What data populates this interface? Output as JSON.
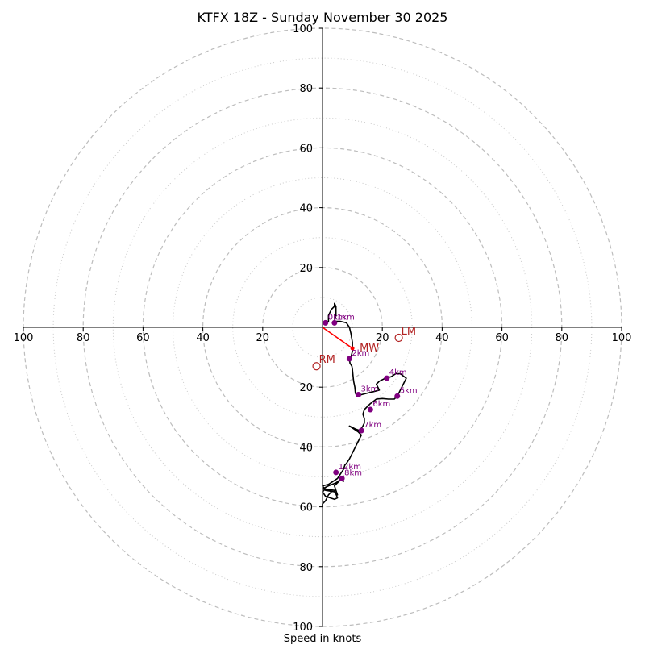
{
  "chart_data": {
    "type": "hodograph",
    "title": "KTFX 18Z - Sunday November 30 2025",
    "xlabel": "Speed in knots",
    "range": [
      -100,
      100
    ],
    "units": "knots",
    "rings_major": [
      20,
      40,
      60,
      80,
      100
    ],
    "rings_minor": [
      10,
      30,
      50,
      70,
      90
    ],
    "ticks": [
      {
        "value": -100,
        "label": "100"
      },
      {
        "value": -80,
        "label": "80"
      },
      {
        "value": -60,
        "label": "60"
      },
      {
        "value": -40,
        "label": "40"
      },
      {
        "value": -20,
        "label": "20"
      },
      {
        "value": 20,
        "label": "20"
      },
      {
        "value": 40,
        "label": "40"
      },
      {
        "value": 60,
        "label": "60"
      },
      {
        "value": 80,
        "label": "80"
      },
      {
        "value": 100,
        "label": "100"
      }
    ],
    "trace": [
      [
        1,
        1.5
      ],
      [
        2,
        2
      ],
      [
        2,
        4
      ],
      [
        3,
        6
      ],
      [
        4,
        7
      ],
      [
        4,
        8
      ],
      [
        4.5,
        7
      ],
      [
        4.5,
        4
      ],
      [
        4,
        2
      ],
      [
        3.5,
        1.5
      ],
      [
        3.8,
        1.5
      ],
      [
        4.5,
        2
      ],
      [
        6,
        2
      ],
      [
        8,
        1.5
      ],
      [
        9,
        0
      ],
      [
        9.5,
        -2
      ],
      [
        10,
        -5
      ],
      [
        10,
        -8
      ],
      [
        9.5,
        -10
      ],
      [
        9,
        -10.5
      ],
      [
        9.2,
        -12
      ],
      [
        9.8,
        -13
      ],
      [
        10,
        -14
      ],
      [
        10.2,
        -16
      ],
      [
        10.4,
        -18
      ],
      [
        10.8,
        -20
      ],
      [
        11,
        -22
      ],
      [
        11.5,
        -23
      ],
      [
        13,
        -22.5
      ],
      [
        15,
        -22
      ],
      [
        17,
        -21.5
      ],
      [
        19,
        -21
      ],
      [
        18,
        -19
      ],
      [
        19,
        -18
      ],
      [
        21,
        -17
      ],
      [
        23,
        -16.5
      ],
      [
        24.5,
        -15.5
      ],
      [
        26,
        -15.5
      ],
      [
        28,
        -17
      ],
      [
        27,
        -19
      ],
      [
        26.5,
        -20
      ],
      [
        25,
        -23
      ],
      [
        24,
        -24
      ],
      [
        22,
        -24
      ],
      [
        20,
        -23.8
      ],
      [
        18,
        -24
      ],
      [
        16,
        -25.5
      ],
      [
        14,
        -27.5
      ],
      [
        13.5,
        -29
      ],
      [
        14,
        -30.5
      ],
      [
        14,
        -32
      ],
      [
        13.5,
        -33
      ],
      [
        12.5,
        -34.5
      ],
      [
        11,
        -34
      ],
      [
        9,
        -33
      ],
      [
        10.5,
        -34
      ],
      [
        12,
        -35
      ],
      [
        13,
        -36
      ],
      [
        12,
        -38
      ],
      [
        11,
        -40
      ],
      [
        10,
        -42
      ],
      [
        9,
        -44
      ],
      [
        8,
        -45.5
      ],
      [
        7.5,
        -46
      ],
      [
        7,
        -47.5
      ],
      [
        6,
        -49
      ],
      [
        5,
        -50.5
      ],
      [
        2,
        -52.5
      ],
      [
        0,
        -53
      ],
      [
        1,
        -54.5
      ],
      [
        4,
        -55
      ],
      [
        5,
        -56
      ],
      [
        4,
        -53
      ],
      [
        6,
        -51
      ],
      [
        7,
        -51.5
      ],
      [
        6.5,
        -50.5
      ],
      [
        4.5,
        -52
      ],
      [
        2,
        -53
      ],
      [
        0,
        -54
      ],
      [
        4,
        -54.5
      ],
      [
        5,
        -57
      ],
      [
        4,
        -57.5
      ],
      [
        1,
        -56.5
      ],
      [
        0,
        -55
      ],
      [
        1,
        -54
      ],
      [
        3,
        -55
      ],
      [
        2,
        -56
      ],
      [
        1,
        -58
      ],
      [
        0,
        -59
      ],
      [
        0,
        -60
      ],
      [
        0,
        -59.5
      ]
    ],
    "height_markers": [
      {
        "label": "0km",
        "x": 1,
        "y": 1.5
      },
      {
        "label": "1km",
        "x": 4,
        "y": 1.5
      },
      {
        "label": "2km",
        "x": 9,
        "y": -10.5
      },
      {
        "label": "3km",
        "x": 12,
        "y": -22.5
      },
      {
        "label": "4km",
        "x": 21.5,
        "y": -17
      },
      {
        "label": "5km",
        "x": 25,
        "y": -23
      },
      {
        "label": "6km",
        "x": 16,
        "y": -27.5
      },
      {
        "label": "7km",
        "x": 13,
        "y": -34.5
      },
      {
        "label": "8km",
        "x": 6.5,
        "y": -50.5
      },
      {
        "label": "12km",
        "x": 4.5,
        "y": -48.5
      }
    ],
    "mean_wind_vector": {
      "label": "MW",
      "x": 10,
      "y": -7
    },
    "storm_motion": [
      {
        "label": "LM",
        "x": 25.5,
        "y": -3.5
      },
      {
        "label": "RM",
        "x": -2,
        "y": -13
      }
    ],
    "colors": {
      "ring": "#bdbdbd",
      "axis": "#000000",
      "trace": "#000000",
      "marker": "#800080",
      "mean_wind": "#ff0000",
      "storm_motion": "#b22222"
    }
  }
}
